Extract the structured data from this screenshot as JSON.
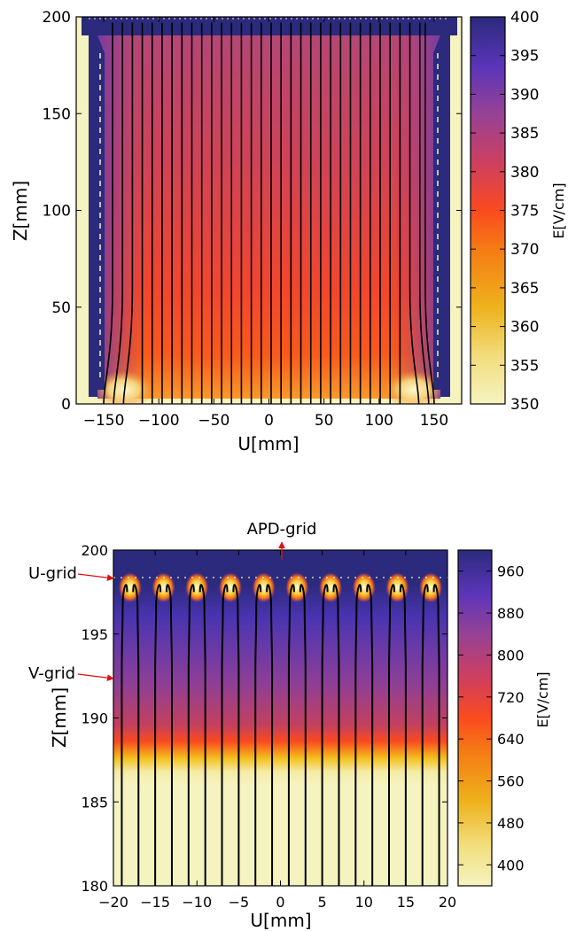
{
  "colors": {
    "field_low": "#f5f3c0",
    "field_mid": "#fb4a1f",
    "field_high": "#2b2a7c",
    "field_lines": "#000000",
    "arrows": "#e01010"
  },
  "chart_data": [
    {
      "type": "heatmap",
      "title": "",
      "xlabel": "U[mm]",
      "ylabel": "Z[mm]",
      "xlim": [
        -175,
        175
      ],
      "ylim": [
        0,
        200
      ],
      "xticks": [
        "−150",
        "−100",
        "−50",
        "0",
        "50",
        "100",
        "150"
      ],
      "xtick_values": [
        -150,
        -100,
        -50,
        0,
        50,
        100,
        150
      ],
      "yticks": [
        "0",
        "50",
        "100",
        "150",
        "200"
      ],
      "ytick_values": [
        0,
        50,
        100,
        150,
        200
      ],
      "colorbar": {
        "label": "E[V/cm]",
        "range": [
          350,
          400
        ],
        "ticks": [
          "350",
          "355",
          "360",
          "365",
          "370",
          "375",
          "380",
          "385",
          "390",
          "395",
          "400"
        ],
        "tick_values": [
          350,
          355,
          360,
          365,
          370,
          375,
          380,
          385,
          390,
          395,
          400
        ]
      },
      "field_lines_x": [
        -142,
        -133,
        -124,
        -115,
        -106,
        -97,
        -88,
        -79,
        -70,
        -61,
        -52,
        -43,
        -34,
        -25,
        -16,
        -7,
        2,
        11,
        20,
        29,
        38,
        47,
        56,
        65,
        74,
        83,
        92,
        101,
        110,
        119,
        128,
        137,
        142
      ]
    },
    {
      "type": "heatmap",
      "title": "",
      "xlabel": "U[mm]",
      "ylabel": "Z[mm]",
      "xlim": [
        -20,
        20
      ],
      "ylim": [
        180,
        200
      ],
      "xticks": [
        "−20",
        "−15",
        "−10",
        "−5",
        "0",
        "5",
        "10",
        "15",
        "20"
      ],
      "xtick_values": [
        -20,
        -15,
        -10,
        -5,
        0,
        5,
        10,
        15,
        20
      ],
      "yticks": [
        "180",
        "185",
        "190",
        "195",
        "200"
      ],
      "ytick_values": [
        180,
        185,
        190,
        195,
        200
      ],
      "colorbar": {
        "label": "E[V/cm]",
        "range": [
          360,
          1000
        ],
        "ticks": [
          "400",
          "480",
          "560",
          "640",
          "720",
          "800",
          "880",
          "960"
        ],
        "tick_values": [
          400,
          480,
          560,
          640,
          720,
          800,
          880,
          960
        ]
      },
      "annotations": [
        {
          "text": "APD-grid",
          "z": 199.9,
          "u": 0
        },
        {
          "text": "U-grid",
          "z": 198.3,
          "u": -20
        },
        {
          "text": "V-grid",
          "z": 192.4,
          "u": -20
        }
      ],
      "grid_planes": {
        "u_grid_z": 198.3,
        "v_grid_z": 192.4
      },
      "field_lines_x": [
        -19,
        -17,
        -15,
        -13,
        -11,
        -9,
        -7,
        -5,
        -3,
        -1,
        1,
        3,
        5,
        7,
        9,
        11,
        13,
        15,
        17,
        19
      ]
    }
  ]
}
